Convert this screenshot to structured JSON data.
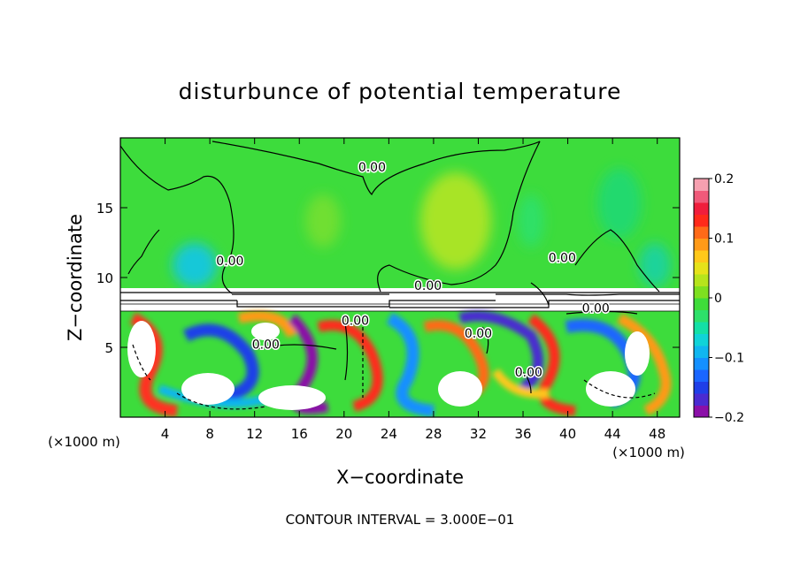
{
  "chart_data": {
    "type": "heatmap",
    "title": "disturbunce of potential temperature",
    "xlabel": "X−coordinate",
    "ylabel": "Z−coordinate",
    "x_unit_left": "(×1000 m)",
    "x_unit_right": "(×1000 m)",
    "footer": "CONTOUR INTERVAL = 3.000E−01",
    "xlim": [
      0,
      50
    ],
    "ylim": [
      0,
      20
    ],
    "x_ticks": [
      4,
      8,
      12,
      16,
      20,
      24,
      28,
      32,
      36,
      40,
      44,
      48
    ],
    "y_ticks": [
      5,
      10,
      15
    ],
    "colorbar": {
      "min": -0.2,
      "max": 0.2,
      "tick_values": [
        0.2,
        0.1,
        0,
        -0.1,
        -0.2
      ],
      "tick_labels": [
        "0.2",
        "0.1",
        "0",
        "−0.1",
        "−0.2"
      ],
      "colors": [
        "#8b0fa8",
        "#4a2bd1",
        "#1f3fe8",
        "#1a66ff",
        "#1490ff",
        "#10b6f0",
        "#10d3d8",
        "#13e0a6",
        "#2de06a",
        "#3fdc3a",
        "#7ee020",
        "#b6e41c",
        "#e6e21a",
        "#ffc81a",
        "#ff9a18",
        "#ff6a18",
        "#ff2a1a",
        "#f01e3c",
        "#f05a7a",
        "#f6a0b0"
      ]
    },
    "contour_labels": [
      {
        "x": 22.5,
        "z": 17.6,
        "text": "0.00"
      },
      {
        "x": 27.5,
        "z": 9.1,
        "text": "0.00"
      },
      {
        "x": 9.8,
        "z": 10.9,
        "text": "0.00"
      },
      {
        "x": 39.5,
        "z": 11.1,
        "text": "0.00"
      },
      {
        "x": 42.5,
        "z": 7.5,
        "text": "0.00"
      },
      {
        "x": 13.0,
        "z": 4.9,
        "text": "0.00"
      },
      {
        "x": 21.0,
        "z": 6.6,
        "text": "0.00"
      },
      {
        "x": 32.0,
        "z": 5.7,
        "text": "0.00"
      },
      {
        "x": 36.5,
        "z": 2.9,
        "text": "0.00"
      }
    ]
  }
}
